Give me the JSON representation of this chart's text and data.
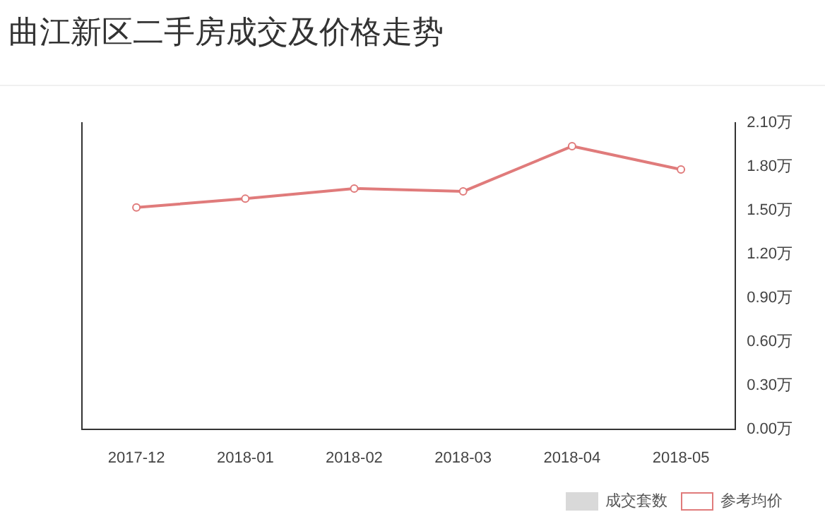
{
  "chart_data": {
    "type": "line",
    "title": "曲江新区二手房成交及价格走势",
    "categories": [
      "2017-12",
      "2018-01",
      "2018-02",
      "2018-03",
      "2018-04",
      "2018-05"
    ],
    "series": [
      {
        "name": "成交套数",
        "type": "bar",
        "color": "#d9d9d9",
        "values": [
          null,
          null,
          null,
          null,
          null,
          null
        ]
      },
      {
        "name": "参考均价",
        "axis": "y2",
        "color": "#e07b7b",
        "values": [
          1.52,
          1.58,
          1.65,
          1.63,
          1.94,
          1.78
        ]
      }
    ],
    "y2lim": [
      0,
      2.1
    ],
    "y2ticks": [
      {
        "value": 0,
        "label": "0.00万"
      },
      {
        "value": 0.3,
        "label": "0.30万"
      },
      {
        "value": 0.6,
        "label": "0.60万"
      },
      {
        "value": 0.9,
        "label": "0.90万"
      },
      {
        "value": 1.2,
        "label": "1.20万"
      },
      {
        "value": 1.5,
        "label": "1.50万"
      },
      {
        "value": 1.8,
        "label": "1.80万"
      },
      {
        "value": 2.1,
        "label": "2.10万"
      }
    ],
    "legend": "bottom right",
    "marker": "circle",
    "line_style": "solid",
    "grid": false
  }
}
